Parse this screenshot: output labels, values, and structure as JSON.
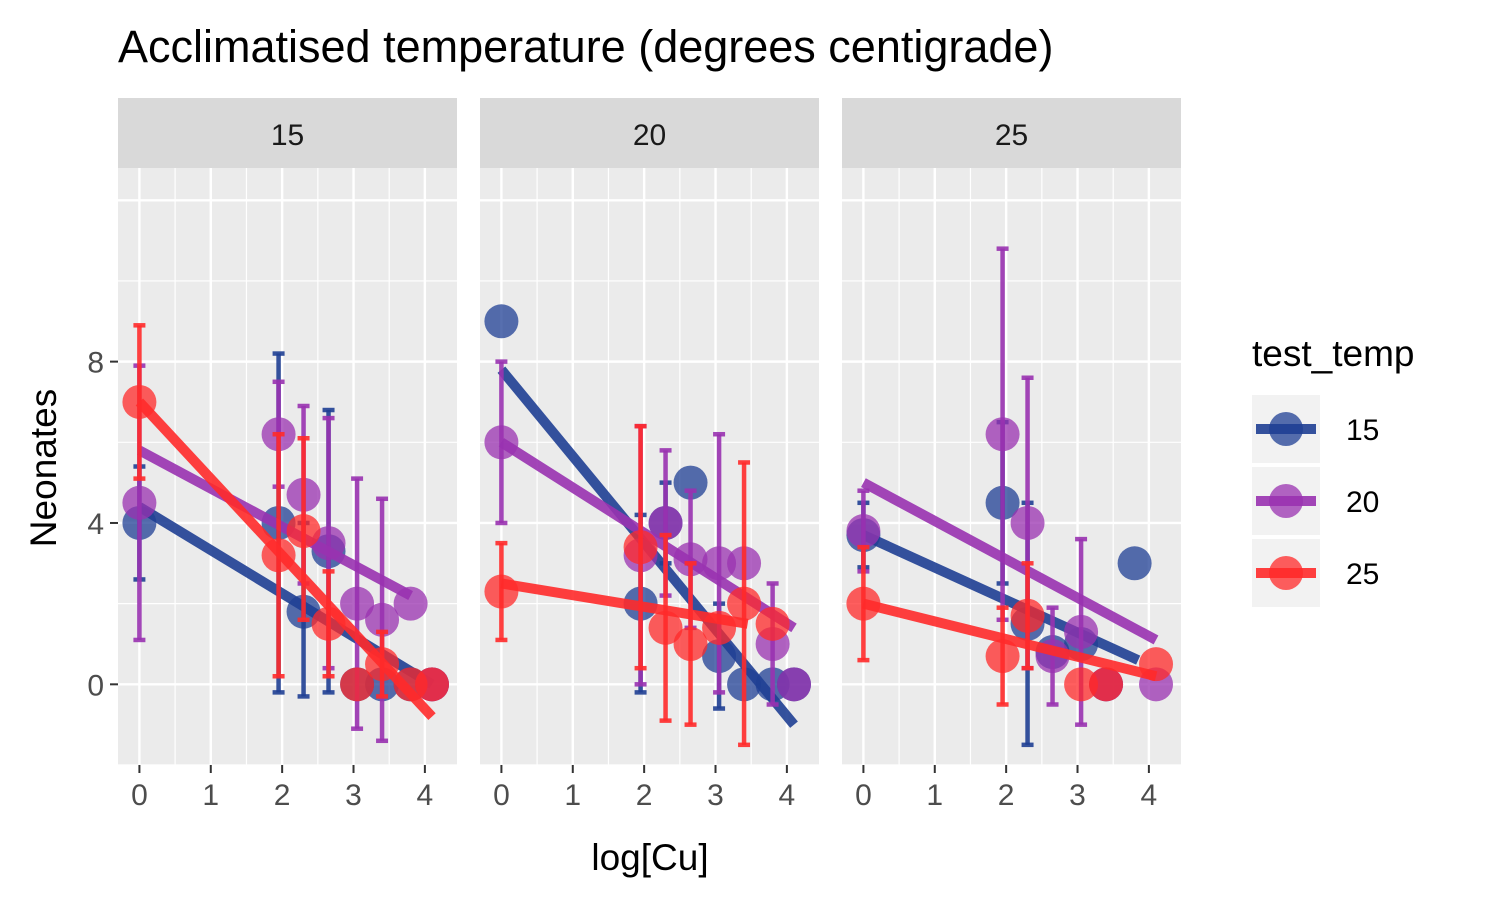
{
  "chart_data": {
    "type": "scatter",
    "title": "Acclimatised temperature (degrees centigrade)",
    "xlabel": "log[Cu]",
    "ylabel": "Neonates",
    "x_ticks": [
      0,
      1,
      2,
      3,
      4
    ],
    "y_ticks": [
      0,
      4,
      8
    ],
    "xlim": [
      -0.3,
      4.45
    ],
    "ylim": [
      -2.0,
      12.8
    ],
    "grid": true,
    "legend": {
      "title": "test_temp",
      "position": "right",
      "entries": [
        {
          "label": "15",
          "color": "#1F3F94"
        },
        {
          "label": "20",
          "color": "#9932B0"
        },
        {
          "label": "25",
          "color": "#FF2A2A"
        }
      ]
    },
    "panels": [
      {
        "label": "15",
        "series": [
          {
            "name": "15",
            "points": [
              {
                "x": 0,
                "y": 4.0,
                "lo": 2.6,
                "hi": 5.4
              },
              {
                "x": 1.95,
                "y": 4.0,
                "lo": -0.2,
                "hi": 8.2
              },
              {
                "x": 2.3,
                "y": 1.8,
                "lo": -0.3,
                "hi": 4.0
              },
              {
                "x": 2.65,
                "y": 3.3,
                "lo": -0.2,
                "hi": 6.8
              },
              {
                "x": 3.05,
                "y": 0.0
              },
              {
                "x": 3.4,
                "y": 0.0
              },
              {
                "x": 3.8,
                "y": 0.0
              },
              {
                "x": 4.1,
                "y": 0.0
              }
            ],
            "fit": {
              "x": [
                0,
                4.1
              ],
              "y": [
                4.4,
                0.0
              ]
            }
          },
          {
            "name": "20",
            "points": [
              {
                "x": 0,
                "y": 4.5,
                "lo": 1.1,
                "hi": 7.9
              },
              {
                "x": 1.95,
                "y": 6.2,
                "lo": 4.9,
                "hi": 7.5
              },
              {
                "x": 2.3,
                "y": 4.7,
                "lo": 2.5,
                "hi": 6.9
              },
              {
                "x": 2.65,
                "y": 3.5,
                "lo": 0.4,
                "hi": 6.6
              },
              {
                "x": 3.05,
                "y": 2.0,
                "lo": -1.1,
                "hi": 5.1
              },
              {
                "x": 3.4,
                "y": 1.6,
                "lo": -1.4,
                "hi": 4.6
              },
              {
                "x": 3.8,
                "y": 2.0
              },
              {
                "x": 4.1,
                "y": 0.0
              }
            ],
            "fit": {
              "x": [
                0,
                3.8
              ],
              "y": [
                5.8,
                2.2
              ]
            }
          },
          {
            "name": "25",
            "points": [
              {
                "x": 0,
                "y": 7.0,
                "lo": 5.1,
                "hi": 8.9
              },
              {
                "x": 1.95,
                "y": 3.2,
                "lo": 0.2,
                "hi": 6.2
              },
              {
                "x": 2.3,
                "y": 3.8,
                "lo": 1.6,
                "hi": 6.1
              },
              {
                "x": 2.65,
                "y": 1.5,
                "lo": 0.2,
                "hi": 2.8
              },
              {
                "x": 3.05,
                "y": 0.0
              },
              {
                "x": 3.4,
                "y": 0.5,
                "lo": -0.3,
                "hi": 1.3
              },
              {
                "x": 3.8,
                "y": 0.0
              },
              {
                "x": 4.1,
                "y": 0.0
              }
            ],
            "fit": {
              "x": [
                0,
                4.1
              ],
              "y": [
                7.0,
                -0.8
              ]
            }
          }
        ]
      },
      {
        "label": "20",
        "series": [
          {
            "name": "15",
            "points": [
              {
                "x": 0,
                "y": 9.0
              },
              {
                "x": 1.95,
                "y": 2.0,
                "lo": -0.2,
                "hi": 4.2
              },
              {
                "x": 2.3,
                "y": 4.0,
                "lo": 3.0,
                "hi": 5.0
              },
              {
                "x": 2.65,
                "y": 5.0
              },
              {
                "x": 3.05,
                "y": 0.7,
                "lo": -0.6,
                "hi": 2.0
              },
              {
                "x": 3.4,
                "y": 0.0
              },
              {
                "x": 3.8,
                "y": 0.0
              },
              {
                "x": 4.1,
                "y": 0.0
              }
            ],
            "fit": {
              "x": [
                0,
                4.1
              ],
              "y": [
                7.8,
                -1.0
              ]
            }
          },
          {
            "name": "20",
            "points": [
              {
                "x": 0,
                "y": 6.0,
                "lo": 4.0,
                "hi": 8.0
              },
              {
                "x": 1.95,
                "y": 3.2,
                "lo": 0.0,
                "hi": 6.4
              },
              {
                "x": 2.3,
                "y": 4.0,
                "lo": 2.2,
                "hi": 5.8
              },
              {
                "x": 2.65,
                "y": 3.1,
                "lo": 1.4,
                "hi": 4.8
              },
              {
                "x": 3.05,
                "y": 3.0,
                "lo": -0.2,
                "hi": 6.2
              },
              {
                "x": 3.4,
                "y": 3.0
              },
              {
                "x": 3.8,
                "y": 1.0,
                "lo": -0.5,
                "hi": 2.5
              },
              {
                "x": 4.1,
                "y": 0.0
              }
            ],
            "fit": {
              "x": [
                0,
                4.1
              ],
              "y": [
                6.0,
                1.4
              ]
            }
          },
          {
            "name": "25",
            "points": [
              {
                "x": 0,
                "y": 2.3,
                "lo": 1.1,
                "hi": 3.5
              },
              {
                "x": 1.95,
                "y": 3.4,
                "lo": 0.4,
                "hi": 6.4
              },
              {
                "x": 2.3,
                "y": 1.4,
                "lo": -0.9,
                "hi": 3.7
              },
              {
                "x": 2.65,
                "y": 1.0,
                "lo": -1.0,
                "hi": 3.0
              },
              {
                "x": 3.05,
                "y": 1.4
              },
              {
                "x": 3.4,
                "y": 2.0,
                "lo": -1.5,
                "hi": 5.5
              },
              {
                "x": 3.8,
                "y": 1.5
              }
            ],
            "fit": {
              "x": [
                0,
                3.45
              ],
              "y": [
                2.5,
                1.5
              ]
            }
          }
        ]
      },
      {
        "label": "25",
        "series": [
          {
            "name": "15",
            "points": [
              {
                "x": 0,
                "y": 3.7,
                "lo": 2.9,
                "hi": 4.5
              },
              {
                "x": 1.95,
                "y": 4.5,
                "lo": 2.5,
                "hi": 6.5
              },
              {
                "x": 2.3,
                "y": 1.5,
                "lo": -1.5,
                "hi": 4.5
              },
              {
                "x": 2.65,
                "y": 0.8
              },
              {
                "x": 3.05,
                "y": 1.0
              },
              {
                "x": 3.4,
                "y": 0.0
              },
              {
                "x": 3.8,
                "y": 3.0
              }
            ],
            "fit": {
              "x": [
                0,
                3.85
              ],
              "y": [
                3.7,
                0.6
              ]
            }
          },
          {
            "name": "20",
            "points": [
              {
                "x": 0,
                "y": 3.8,
                "lo": 2.8,
                "hi": 4.8
              },
              {
                "x": 1.95,
                "y": 6.2,
                "lo": 1.6,
                "hi": 10.8
              },
              {
                "x": 2.3,
                "y": 4.0,
                "lo": 0.4,
                "hi": 7.6
              },
              {
                "x": 2.65,
                "y": 0.7,
                "lo": -0.5,
                "hi": 1.9
              },
              {
                "x": 3.05,
                "y": 1.3,
                "lo": -1.0,
                "hi": 3.6
              },
              {
                "x": 3.4,
                "y": 0.0
              },
              {
                "x": 4.1,
                "y": 0.0
              }
            ],
            "fit": {
              "x": [
                0,
                4.1
              ],
              "y": [
                5.0,
                1.1
              ]
            }
          },
          {
            "name": "25",
            "points": [
              {
                "x": 0,
                "y": 2.0,
                "lo": 0.6,
                "hi": 3.4
              },
              {
                "x": 1.95,
                "y": 0.7,
                "lo": -0.5,
                "hi": 1.9
              },
              {
                "x": 2.3,
                "y": 1.7,
                "lo": 0.4,
                "hi": 3.0
              },
              {
                "x": 3.05,
                "y": 0.0
              },
              {
                "x": 3.4,
                "y": 0.0
              },
              {
                "x": 4.1,
                "y": 0.5
              }
            ],
            "fit": {
              "x": [
                0,
                4.1
              ],
              "y": [
                2.0,
                0.2
              ]
            }
          }
        ]
      }
    ]
  }
}
